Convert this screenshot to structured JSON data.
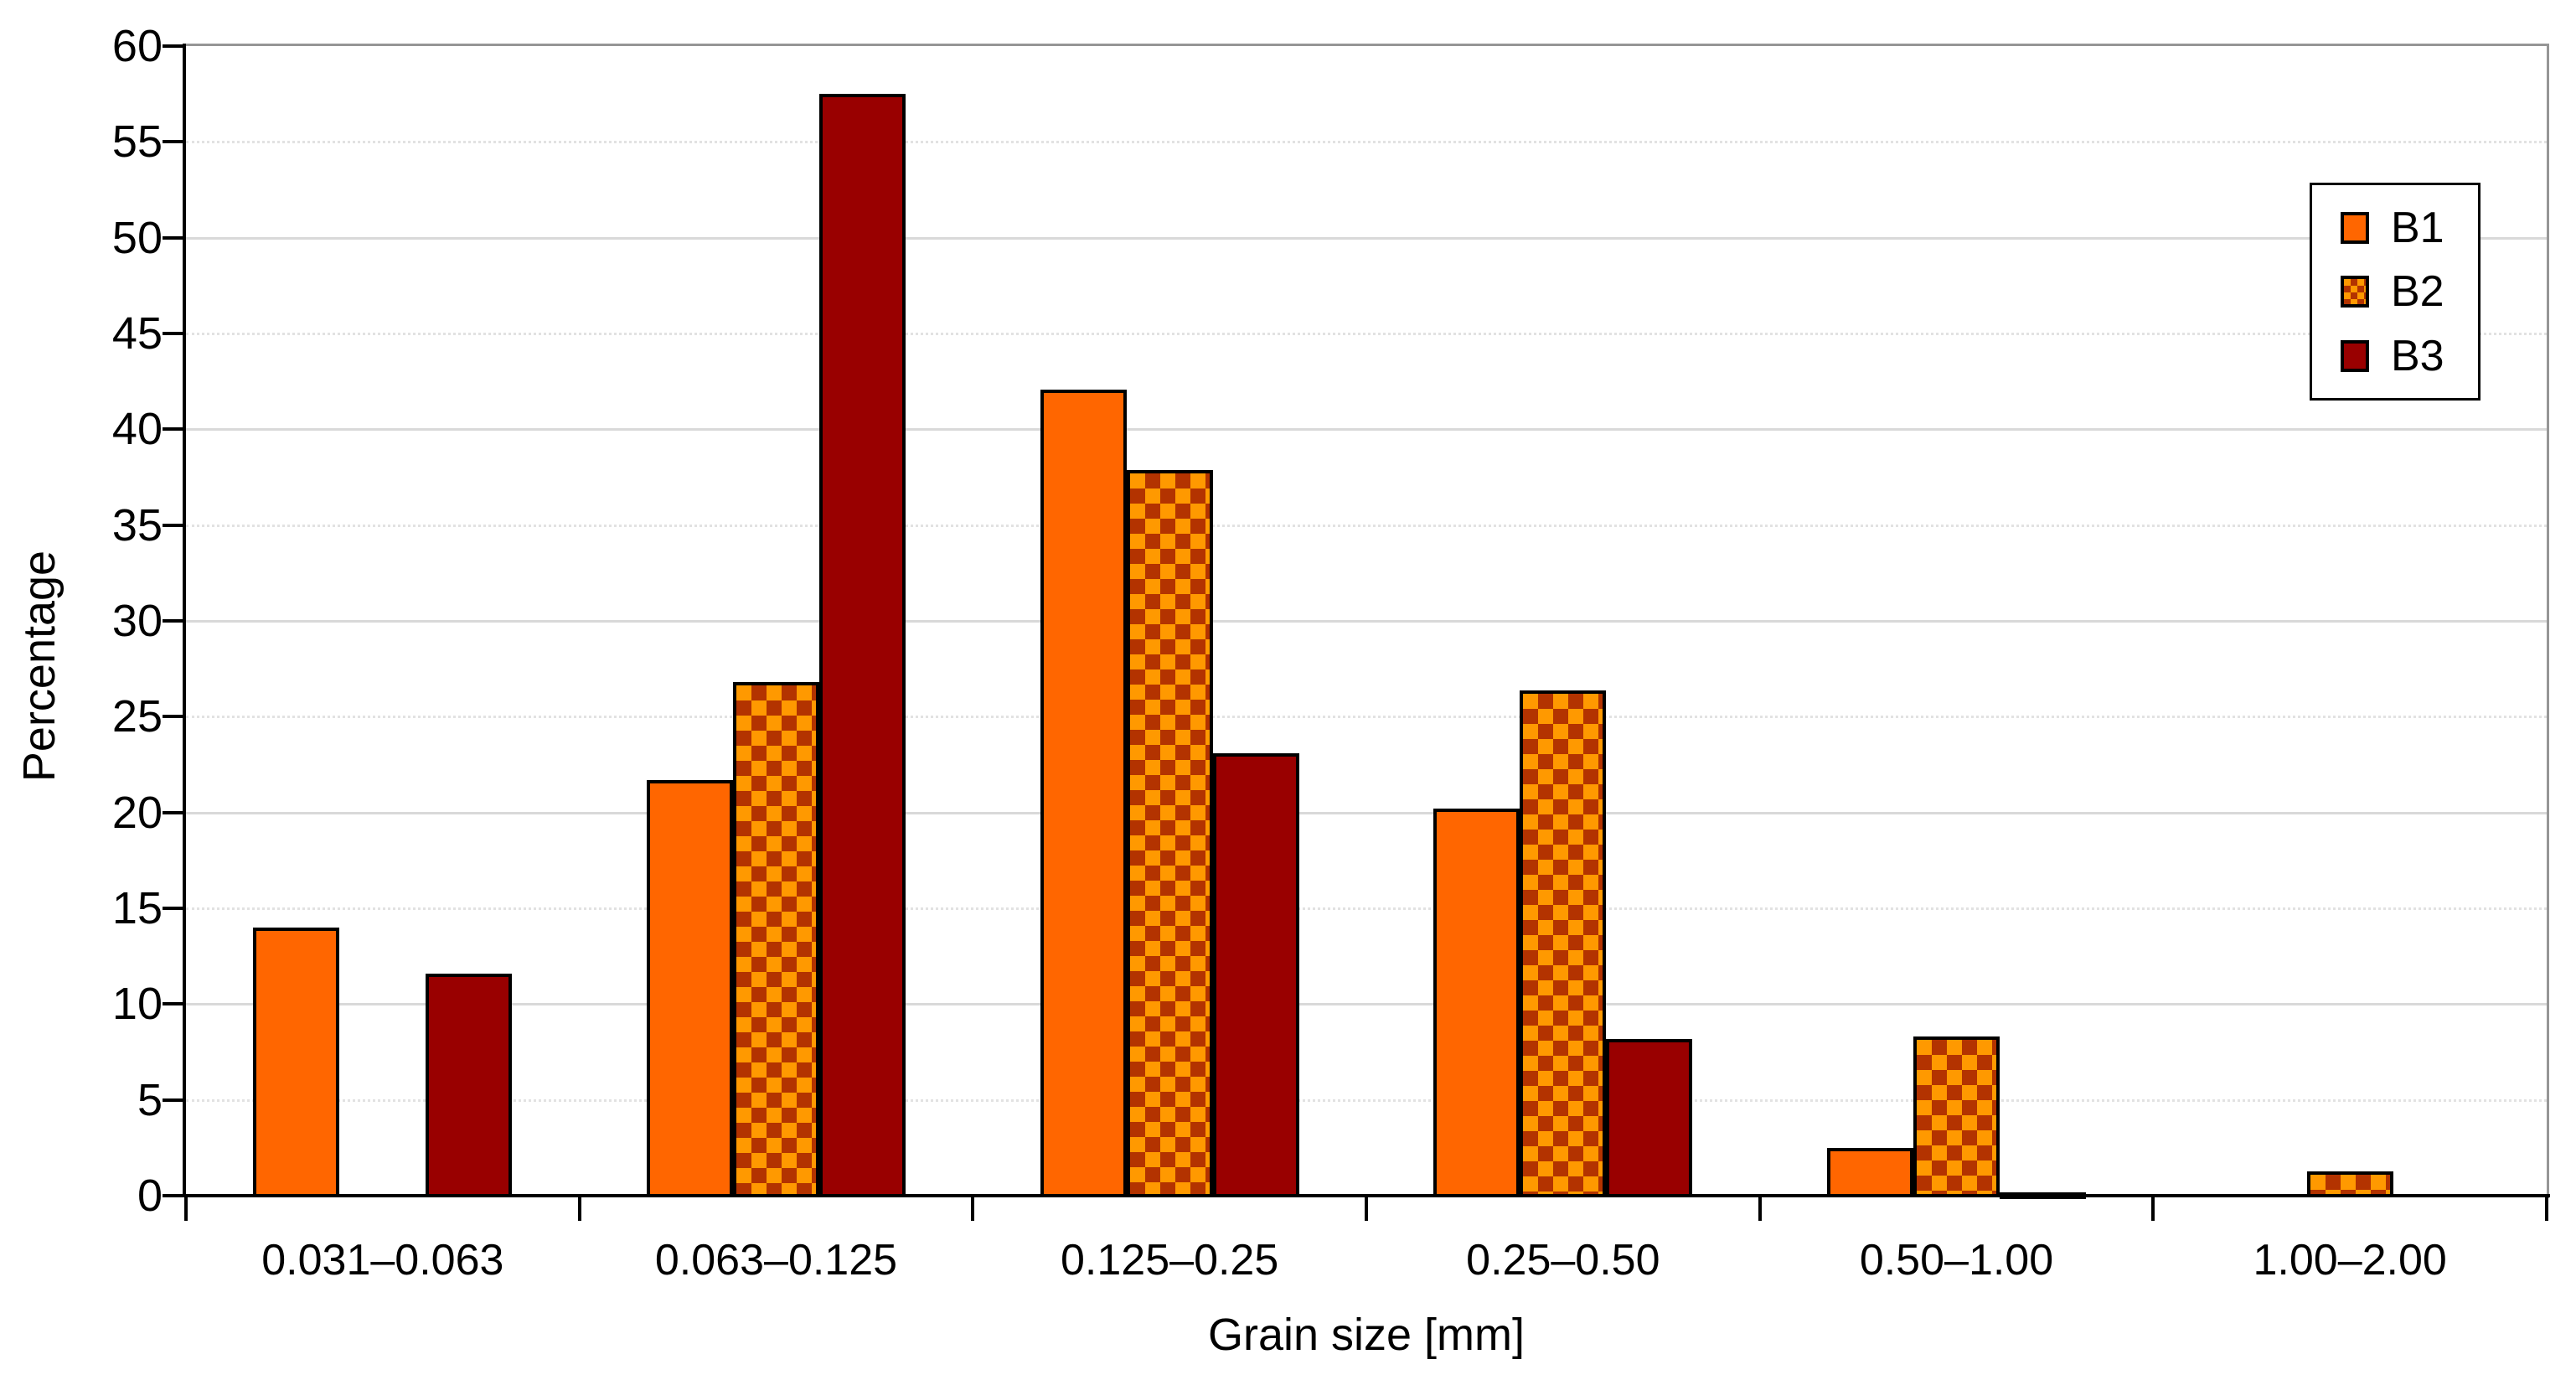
{
  "chart_data": {
    "type": "bar",
    "title": "",
    "xlabel": "Grain size [mm]",
    "ylabel": "Percentage",
    "categories": [
      "0.031–0.063",
      "0.063–0.125",
      "0.125–0.25",
      "0.25–0.50",
      "0.50–1.00",
      "1.00–2.00"
    ],
    "series": [
      {
        "name": "B1",
        "style": "solid",
        "color": "#ff6600",
        "values": [
          13.9,
          21.6,
          42.0,
          20.1,
          2.4,
          0
        ]
      },
      {
        "name": "B2",
        "style": "checker",
        "colors": [
          "#ff9900",
          "#b33300"
        ],
        "values": [
          0,
          26.7,
          37.8,
          26.3,
          8.2,
          1.2
        ]
      },
      {
        "name": "B3",
        "style": "solid",
        "color": "#990000",
        "values": [
          11.5,
          57.4,
          23.0,
          8.1,
          0.1,
          0
        ]
      }
    ],
    "ylim": [
      0,
      60
    ],
    "ytick_step": 5,
    "grid": "horizontal",
    "gridline_color": "#d9d9d9",
    "bar_border_color": "#000000",
    "legend_position": "top-right",
    "legend_labels": [
      "B1",
      "B2",
      "B3"
    ]
  }
}
